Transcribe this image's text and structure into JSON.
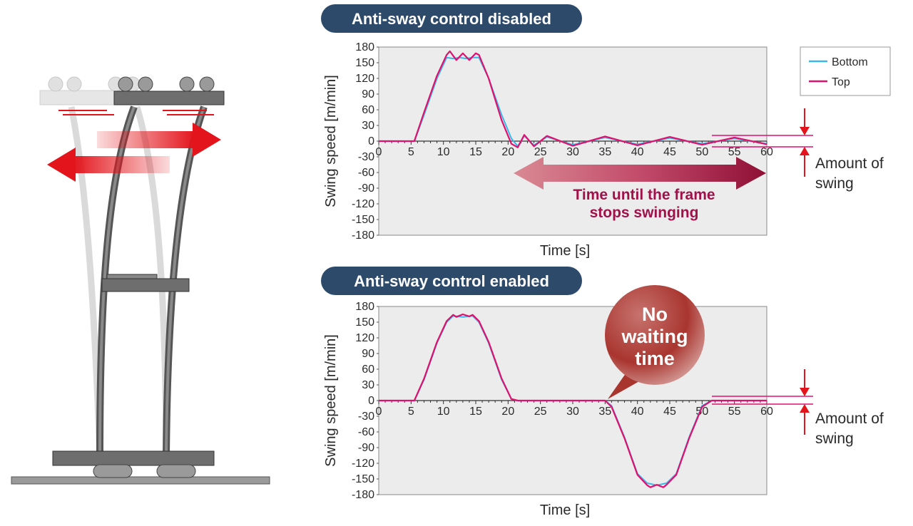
{
  "colors": {
    "bottom_series": "#3ab8e8",
    "top_series": "#e0106e",
    "badge_bg": "#2e4a6b",
    "plot_bg": "#ececec",
    "frame_dark": "#5a5a5a",
    "frame_light": "#cfcfcf",
    "arrow_red": "#e3141b",
    "caption_color": "#a0114a"
  },
  "legend": {
    "bottom": "Bottom",
    "top": "Top"
  },
  "annotations": {
    "amount_line1": "Amount of",
    "amount_line2": "swing",
    "time_until_line1": "Time until the frame",
    "time_until_line2": "stops swinging",
    "bubble_line1": "No",
    "bubble_line2": "waiting",
    "bubble_line3": "time"
  },
  "chart_data": [
    {
      "type": "line",
      "title": "Anti-sway control disabled",
      "xlabel": "Time [s]",
      "ylabel": "Swing speed [m/min]",
      "xlim": [
        0,
        60
      ],
      "ylim": [
        -180,
        180
      ],
      "xticks": [
        "0",
        "5",
        "10",
        "15",
        "20",
        "25",
        "30",
        "35",
        "40",
        "45",
        "50",
        "55",
        "60"
      ],
      "yticks": [
        "180",
        "150",
        "120",
        "90",
        "60",
        "30",
        "0",
        "-30",
        "-60",
        "-90",
        "-120",
        "-150",
        "-180"
      ],
      "grid": false,
      "legend_position": "top-right",
      "series": [
        {
          "name": "Bottom",
          "color": "#3ab8e8",
          "x": [
            0,
            5.5,
            7,
            9,
            10.5,
            11.5,
            12.5,
            13.5,
            14.5,
            15.5,
            17,
            19,
            20.5,
            21.5,
            22.5,
            24,
            26,
            30,
            35,
            40,
            45,
            50,
            55,
            60
          ],
          "y": [
            0,
            0,
            50,
            120,
            160,
            158,
            160,
            158,
            160,
            160,
            120,
            50,
            5,
            -10,
            10,
            -8,
            8,
            -7,
            7,
            -6,
            6,
            -5,
            5,
            -5
          ]
        },
        {
          "name": "Top",
          "color": "#e0106e",
          "x": [
            0,
            5.5,
            7,
            9,
            10.5,
            11,
            12,
            13,
            14,
            15,
            15.5,
            17,
            19,
            20.5,
            21.5,
            22.5,
            24,
            26,
            30,
            35,
            40,
            45,
            50,
            55,
            60
          ],
          "y": [
            0,
            0,
            55,
            125,
            165,
            172,
            155,
            168,
            155,
            168,
            165,
            120,
            40,
            -5,
            -12,
            12,
            -10,
            10,
            -9,
            9,
            -8,
            8,
            -7,
            7,
            -6
          ]
        }
      ]
    },
    {
      "type": "line",
      "title": "Anti-sway control enabled",
      "xlabel": "Time [s]",
      "ylabel": "Swing speed [m/min]",
      "xlim": [
        0,
        60
      ],
      "ylim": [
        -180,
        180
      ],
      "xticks": [
        "0",
        "5",
        "10",
        "15",
        "20",
        "25",
        "30",
        "35",
        "40",
        "45",
        "50",
        "55",
        "60"
      ],
      "yticks": [
        "180",
        "150",
        "120",
        "90",
        "60",
        "30",
        "0",
        "-30",
        "-60",
        "-90",
        "-120",
        "-150",
        "-180"
      ],
      "grid": false,
      "series": [
        {
          "name": "Bottom",
          "color": "#3ab8e8",
          "x": [
            0,
            5.5,
            7,
            9,
            10.5,
            11.5,
            13,
            14.5,
            15.5,
            17,
            19,
            20.5,
            21.5,
            35,
            36,
            38,
            40,
            41.5,
            43,
            44.5,
            46,
            48,
            50,
            51.5,
            60
          ],
          "y": [
            0,
            0,
            40,
            110,
            150,
            162,
            160,
            162,
            150,
            110,
            40,
            3,
            0,
            0,
            -10,
            -70,
            -140,
            -158,
            -162,
            -158,
            -140,
            -70,
            -10,
            0,
            0
          ]
        },
        {
          "name": "Top",
          "color": "#e0106e",
          "x": [
            0,
            5.5,
            7,
            9,
            10.5,
            11.5,
            12,
            13,
            14,
            14.5,
            15.5,
            17,
            19,
            20.5,
            21.5,
            35,
            36,
            38,
            40,
            41.5,
            42,
            43,
            44,
            44.5,
            46,
            48,
            50,
            51.5,
            60
          ],
          "y": [
            0,
            0,
            42,
            112,
            152,
            164,
            160,
            165,
            161,
            164,
            152,
            112,
            42,
            3,
            0,
            0,
            -12,
            -72,
            -142,
            -162,
            -166,
            -161,
            -166,
            -161,
            -142,
            -72,
            -12,
            0,
            0
          ]
        }
      ]
    }
  ]
}
